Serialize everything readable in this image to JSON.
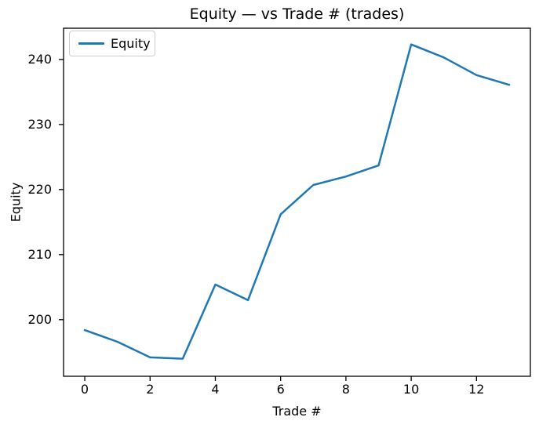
{
  "chart_data": {
    "type": "line",
    "title": "Equity — vs Trade # (trades)",
    "xlabel": "Trade #",
    "ylabel": "Equity",
    "x": [
      0,
      1,
      2,
      3,
      4,
      5,
      6,
      7,
      8,
      9,
      10,
      11,
      12,
      13
    ],
    "series": [
      {
        "name": "Equity",
        "color": "#1f77b4",
        "values": [
          198.4,
          196.6,
          194.2,
          194.0,
          205.4,
          203.0,
          216.2,
          220.7,
          222.0,
          223.7,
          242.3,
          240.3,
          237.6,
          236.1
        ]
      }
    ],
    "xlim": [
      -0.65,
      13.65
    ],
    "ylim": [
      191.3,
      244.8
    ],
    "xticks": [
      0,
      2,
      4,
      6,
      8,
      10,
      12
    ],
    "yticks": [
      200,
      210,
      220,
      230,
      240
    ],
    "grid": false,
    "legend": {
      "position": "upper-left",
      "label": "Equity"
    },
    "colors": {
      "axis": "#000000",
      "text": "#000000",
      "background": "#ffffff",
      "legend_border": "#cccccc"
    }
  }
}
